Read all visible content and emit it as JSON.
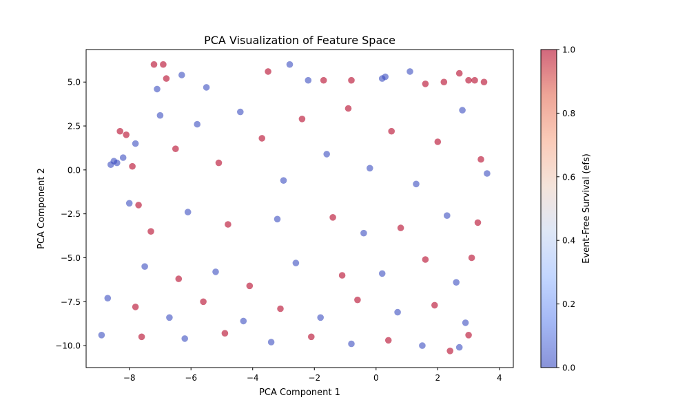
{
  "chart_data": {
    "type": "scatter",
    "title": "PCA Visualization of Feature Space",
    "xlabel": "PCA Component 1",
    "ylabel": "PCA Component 2",
    "xlim": [
      -9.4,
      4.45
    ],
    "ylim": [
      -11.25,
      6.85
    ],
    "x_ticks": [
      -8,
      -6,
      -4,
      -2,
      0,
      2,
      4
    ],
    "x_tick_labels": [
      "−8",
      "−6",
      "−4",
      "−2",
      "0",
      "2",
      "4"
    ],
    "y_ticks": [
      -10.0,
      -7.5,
      -5.0,
      -2.5,
      0.0,
      2.5,
      5.0
    ],
    "y_tick_labels": [
      "−10.0",
      "−7.5",
      "−5.0",
      "−2.5",
      "0.0",
      "2.5",
      "5.0"
    ],
    "grid": false,
    "colormap": "coolwarm",
    "color_low": "#3b4cc0",
    "color_high": "#b40426",
    "point_alpha": 0.6,
    "colorbar": {
      "label": "Event-Free Survival (efs)",
      "range": [
        0.0,
        1.0
      ],
      "ticks": [
        0.0,
        0.2,
        0.4,
        0.6,
        0.8,
        1.0
      ],
      "tick_labels": [
        "0.0",
        "0.2",
        "0.4",
        "0.6",
        "0.8",
        "1.0"
      ],
      "stops": [
        "#3b4cc0",
        "#6788ee",
        "#9abbff",
        "#c9d7f0",
        "#edd1c2",
        "#f7a889",
        "#e26952",
        "#b40426"
      ]
    },
    "points": [
      {
        "x": -7.2,
        "y": 6.0,
        "efs": 1
      },
      {
        "x": -6.9,
        "y": 6.0,
        "efs": 1
      },
      {
        "x": -2.8,
        "y": 6.0,
        "efs": 0
      },
      {
        "x": -6.3,
        "y": 5.4,
        "efs": 0
      },
      {
        "x": -6.8,
        "y": 5.2,
        "efs": 1
      },
      {
        "x": -3.5,
        "y": 5.6,
        "efs": 1
      },
      {
        "x": 1.1,
        "y": 5.6,
        "efs": 0
      },
      {
        "x": 2.7,
        "y": 5.5,
        "efs": 1
      },
      {
        "x": 3.0,
        "y": 5.1,
        "efs": 1
      },
      {
        "x": 3.2,
        "y": 5.1,
        "efs": 1
      },
      {
        "x": 3.5,
        "y": 5.0,
        "efs": 1
      },
      {
        "x": -2.2,
        "y": 5.1,
        "efs": 0
      },
      {
        "x": -1.7,
        "y": 5.1,
        "efs": 1
      },
      {
        "x": -0.8,
        "y": 5.1,
        "efs": 1
      },
      {
        "x": 0.3,
        "y": 5.3,
        "efs": 0
      },
      {
        "x": 0.2,
        "y": 5.2,
        "efs": 0
      },
      {
        "x": -5.5,
        "y": 4.7,
        "efs": 0
      },
      {
        "x": -7.1,
        "y": 4.6,
        "efs": 0
      },
      {
        "x": 1.6,
        "y": 4.9,
        "efs": 1
      },
      {
        "x": 2.2,
        "y": 5.0,
        "efs": 1
      },
      {
        "x": -8.3,
        "y": 2.2,
        "efs": 1
      },
      {
        "x": -8.1,
        "y": 2.0,
        "efs": 1
      },
      {
        "x": -7.8,
        "y": 1.5,
        "efs": 0
      },
      {
        "x": -8.5,
        "y": 0.5,
        "efs": 0
      },
      {
        "x": -8.4,
        "y": 0.4,
        "efs": 0
      },
      {
        "x": -8.2,
        "y": 0.7,
        "efs": 0
      },
      {
        "x": -7.9,
        "y": 0.2,
        "efs": 1
      },
      {
        "x": -8.0,
        "y": -1.9,
        "efs": 0
      },
      {
        "x": -8.6,
        "y": 0.3,
        "efs": 0
      },
      {
        "x": -7.7,
        "y": -2.0,
        "efs": 1
      },
      {
        "x": -7.0,
        "y": 3.1,
        "efs": 0
      },
      {
        "x": -6.5,
        "y": 1.2,
        "efs": 1
      },
      {
        "x": -5.8,
        "y": 2.6,
        "efs": 0
      },
      {
        "x": -5.1,
        "y": 0.4,
        "efs": 1
      },
      {
        "x": -4.4,
        "y": 3.3,
        "efs": 0
      },
      {
        "x": -3.7,
        "y": 1.8,
        "efs": 1
      },
      {
        "x": -3.0,
        "y": -0.6,
        "efs": 0
      },
      {
        "x": -2.4,
        "y": 2.9,
        "efs": 1
      },
      {
        "x": -1.6,
        "y": 0.9,
        "efs": 0
      },
      {
        "x": -0.9,
        "y": 3.5,
        "efs": 1
      },
      {
        "x": -0.2,
        "y": 0.1,
        "efs": 0
      },
      {
        "x": 0.5,
        "y": 2.2,
        "efs": 1
      },
      {
        "x": 1.3,
        "y": -0.8,
        "efs": 0
      },
      {
        "x": 2.0,
        "y": 1.6,
        "efs": 1
      },
      {
        "x": 2.8,
        "y": 3.4,
        "efs": 0
      },
      {
        "x": 3.4,
        "y": 0.6,
        "efs": 1
      },
      {
        "x": 3.6,
        "y": -0.2,
        "efs": 0
      },
      {
        "x": -7.3,
        "y": -3.5,
        "efs": 1
      },
      {
        "x": -6.1,
        "y": -2.4,
        "efs": 0
      },
      {
        "x": -4.8,
        "y": -3.1,
        "efs": 1
      },
      {
        "x": -3.2,
        "y": -2.8,
        "efs": 0
      },
      {
        "x": -1.4,
        "y": -2.7,
        "efs": 1
      },
      {
        "x": -0.4,
        "y": -3.6,
        "efs": 0
      },
      {
        "x": 0.8,
        "y": -3.3,
        "efs": 1
      },
      {
        "x": 2.3,
        "y": -2.6,
        "efs": 0
      },
      {
        "x": 3.3,
        "y": -3.0,
        "efs": 1
      },
      {
        "x": -7.5,
        "y": -5.5,
        "efs": 0
      },
      {
        "x": -6.4,
        "y": -6.2,
        "efs": 1
      },
      {
        "x": -5.2,
        "y": -5.8,
        "efs": 0
      },
      {
        "x": -4.1,
        "y": -6.6,
        "efs": 1
      },
      {
        "x": -2.6,
        "y": -5.3,
        "efs": 0
      },
      {
        "x": -1.1,
        "y": -6.0,
        "efs": 1
      },
      {
        "x": 0.2,
        "y": -5.9,
        "efs": 0
      },
      {
        "x": 1.6,
        "y": -5.1,
        "efs": 1
      },
      {
        "x": 2.6,
        "y": -6.4,
        "efs": 0
      },
      {
        "x": 3.1,
        "y": -5.0,
        "efs": 1
      },
      {
        "x": -8.7,
        "y": -7.3,
        "efs": 0
      },
      {
        "x": -7.8,
        "y": -7.8,
        "efs": 1
      },
      {
        "x": -6.7,
        "y": -8.4,
        "efs": 0
      },
      {
        "x": -5.6,
        "y": -7.5,
        "efs": 1
      },
      {
        "x": -4.3,
        "y": -8.6,
        "efs": 0
      },
      {
        "x": -3.1,
        "y": -7.9,
        "efs": 1
      },
      {
        "x": -1.8,
        "y": -8.4,
        "efs": 0
      },
      {
        "x": -0.6,
        "y": -7.4,
        "efs": 1
      },
      {
        "x": 0.7,
        "y": -8.1,
        "efs": 0
      },
      {
        "x": 1.9,
        "y": -7.7,
        "efs": 1
      },
      {
        "x": 2.9,
        "y": -8.7,
        "efs": 0
      },
      {
        "x": -8.9,
        "y": -9.4,
        "efs": 0
      },
      {
        "x": -7.6,
        "y": -9.5,
        "efs": 1
      },
      {
        "x": -6.2,
        "y": -9.6,
        "efs": 0
      },
      {
        "x": -4.9,
        "y": -9.3,
        "efs": 1
      },
      {
        "x": -3.4,
        "y": -9.8,
        "efs": 0
      },
      {
        "x": -2.1,
        "y": -9.5,
        "efs": 1
      },
      {
        "x": -0.8,
        "y": -9.9,
        "efs": 0
      },
      {
        "x": 0.4,
        "y": -9.7,
        "efs": 1
      },
      {
        "x": 1.5,
        "y": -10.0,
        "efs": 0
      },
      {
        "x": 2.4,
        "y": -10.3,
        "efs": 1
      },
      {
        "x": 2.7,
        "y": -10.1,
        "efs": 0
      },
      {
        "x": 3.0,
        "y": -9.4,
        "efs": 1
      }
    ]
  }
}
